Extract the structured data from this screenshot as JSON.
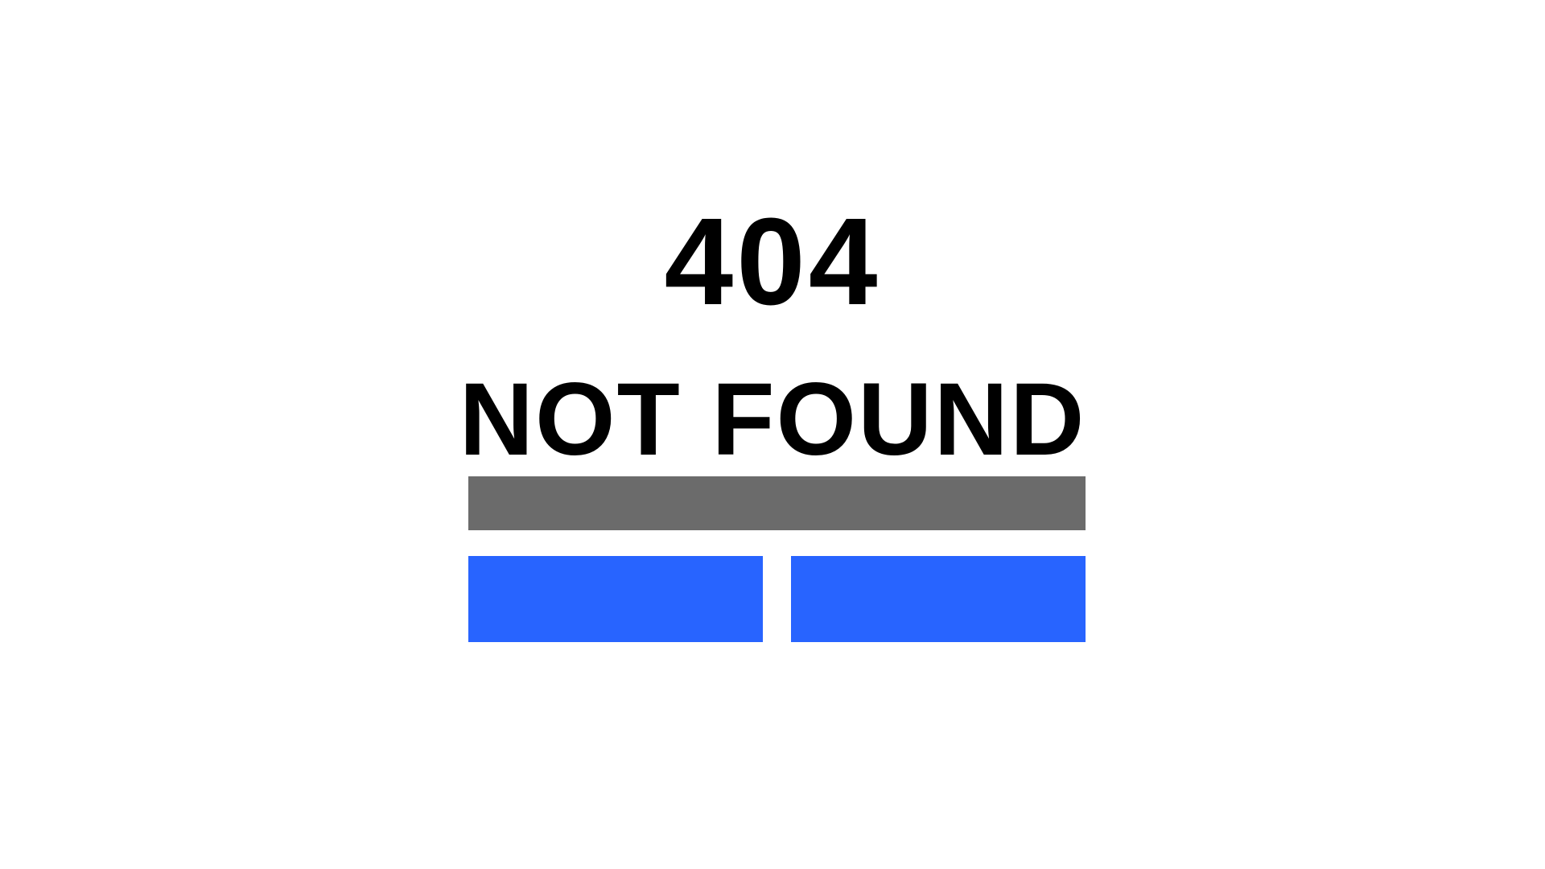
{
  "error": {
    "code": "404",
    "title": "NOT FOUND"
  },
  "colors": {
    "background": "#ffffff",
    "text": "#000000",
    "bar": "#6b6b6b",
    "accent": "#2864ff"
  },
  "actions": [
    {
      "label": ""
    },
    {
      "label": ""
    }
  ]
}
